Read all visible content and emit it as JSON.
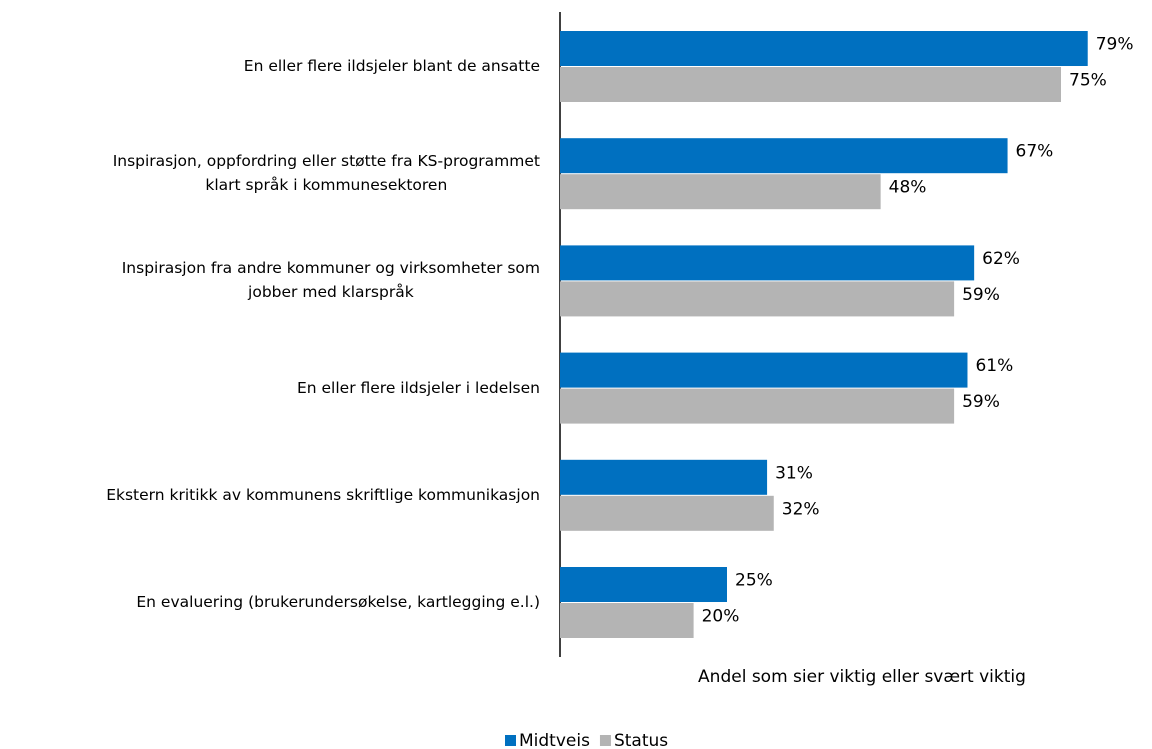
{
  "chart_data": {
    "type": "bar",
    "orientation": "horizontal",
    "x_label": "Andel som sier viktig eller svært viktig",
    "categories": [
      "En eller flere ildsjeler blant de ansatte",
      "Inspirasjon, oppfordring eller støtte fra KS-programmet\nklart språk i kommunesektoren",
      "Inspirasjon fra andre kommuner og virksomheter som\njobber med klarspråk",
      "En eller flere ildsjeler i ledelsen",
      "Ekstern kritikk av kommunens skriftlige kommunikasjon",
      "En evaluering (brukerundersøkelse, kartlegging e.l.)"
    ],
    "series": [
      {
        "name": "Midtveis",
        "color": "#0070c0",
        "values": [
          79,
          67,
          62,
          61,
          31,
          25
        ],
        "value_labels": [
          "79%",
          "67%",
          "62%",
          "61%",
          "31%",
          "25%"
        ]
      },
      {
        "name": "Status",
        "color": "#b4b4b4",
        "values": [
          75,
          48,
          59,
          59,
          32,
          20
        ],
        "value_labels": [
          "75%",
          "48%",
          "59%",
          "59%",
          "32%",
          "20%"
        ]
      }
    ],
    "xlim": [
      0,
      100
    ],
    "legend": "bottom"
  }
}
